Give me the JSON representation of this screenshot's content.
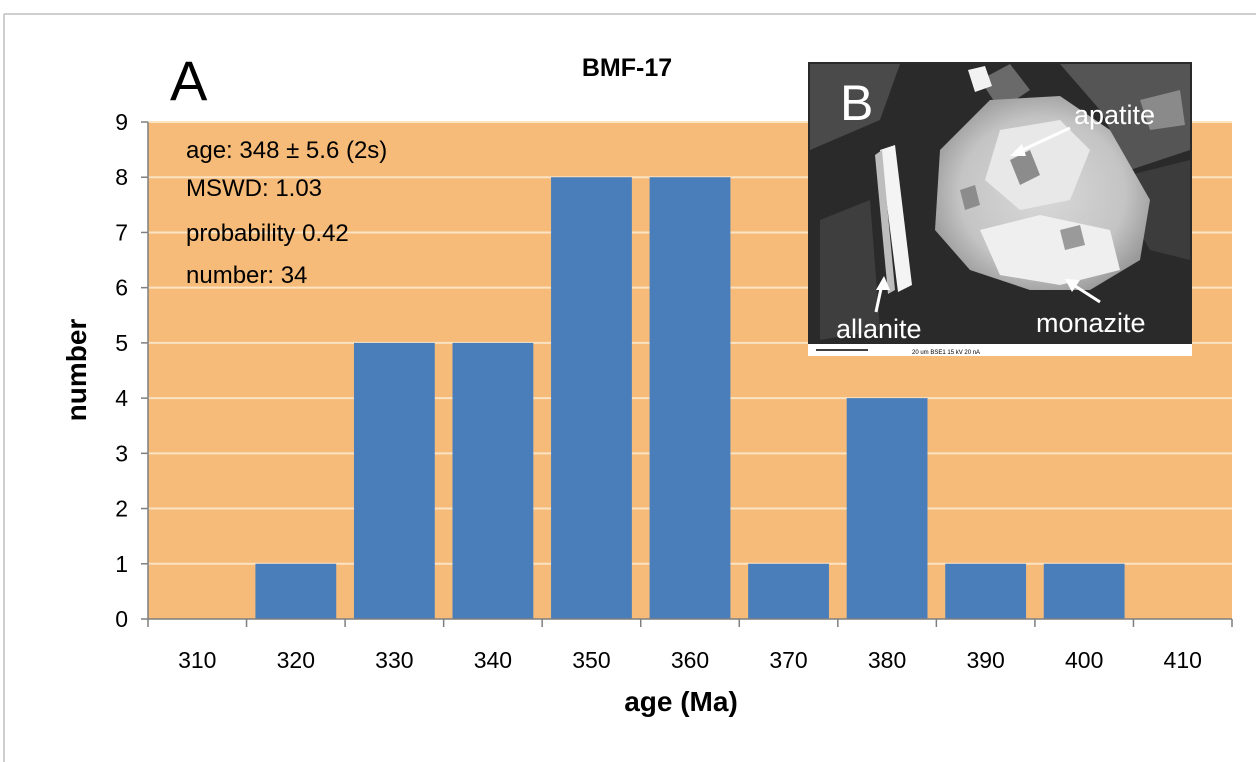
{
  "chart_data": {
    "type": "bar",
    "title": "BMF-17",
    "panel_label": "A",
    "xlabel": "age (Ma)",
    "ylabel": "number",
    "categories": [
      "310",
      "320",
      "330",
      "340",
      "350",
      "360",
      "370",
      "380",
      "390",
      "400",
      "410"
    ],
    "values": [
      0,
      1,
      5,
      5,
      8,
      8,
      1,
      4,
      1,
      1,
      0
    ],
    "yticks": [
      "0",
      "1",
      "2",
      "3",
      "4",
      "5",
      "6",
      "7",
      "8",
      "9"
    ],
    "ylim": [
      0,
      9
    ],
    "grid": "horizontal",
    "legend": "none",
    "colors": {
      "plot_background": "#f6bb79",
      "bar": "#4a7ebb",
      "gridline": "#fbe3c4",
      "axis": "#7f7f7f",
      "text": "#000000"
    },
    "annotations": [
      "age: 348 ± 5.6 (2s)",
      "MSWD: 1.03",
      "probability 0.42",
      "number:  34"
    ]
  },
  "inset": {
    "panel_label": "B",
    "labels": {
      "apatite": "apatite",
      "allanite": "allanite",
      "monazite": "monazite"
    },
    "scale_caption": "20 um   BSE1    15 kV  20 nA"
  }
}
